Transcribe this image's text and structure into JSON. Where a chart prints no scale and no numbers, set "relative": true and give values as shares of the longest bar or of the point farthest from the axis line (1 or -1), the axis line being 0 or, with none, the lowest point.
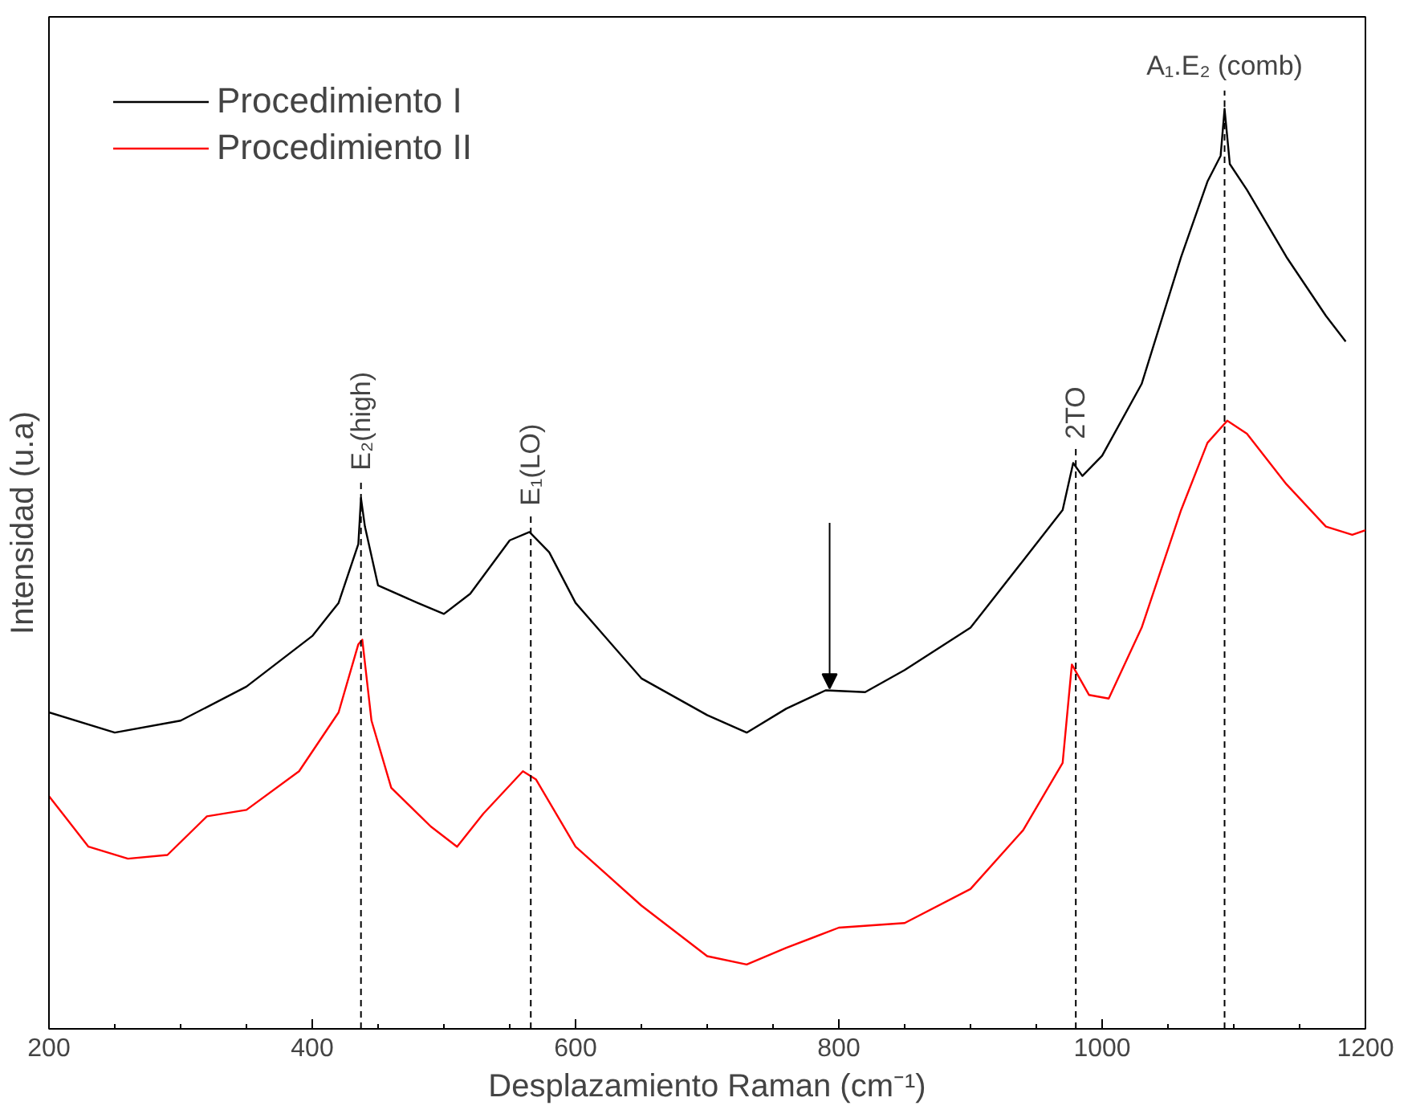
{
  "chart_data": {
    "type": "line",
    "xlabel": "Desplazamiento Raman (cm⁻¹)",
    "ylabel": "Intensidad (u.a)",
    "relative": true,
    "xlim": [
      200,
      1200
    ],
    "xticks": [
      200,
      400,
      600,
      800,
      1000,
      1200
    ],
    "tick_labels": "x",
    "grid": false,
    "legend": "top left",
    "line_style": "solid",
    "series": [
      {
        "name": "Procedimiento I",
        "color": "#000000",
        "x": [
          200,
          250,
          300,
          350,
          400,
          420,
          435,
          437,
          440,
          450,
          480,
          500,
          520,
          550,
          565,
          580,
          600,
          650,
          700,
          730,
          760,
          790,
          820,
          850,
          900,
          940,
          970,
          978,
          985,
          1000,
          1030,
          1060,
          1080,
          1090,
          1093,
          1097,
          1110,
          1140,
          1170,
          1185
        ],
        "values": [
          0.344,
          0.322,
          0.335,
          0.372,
          0.427,
          0.463,
          0.527,
          0.577,
          0.546,
          0.482,
          0.463,
          0.451,
          0.473,
          0.531,
          0.54,
          0.518,
          0.463,
          0.381,
          0.341,
          0.322,
          0.348,
          0.368,
          0.366,
          0.39,
          0.436,
          0.509,
          0.564,
          0.615,
          0.601,
          0.623,
          0.701,
          0.839,
          0.921,
          0.949,
          1,
          0.94,
          0.912,
          0.839,
          0.775,
          0.747
        ]
      },
      {
        "name": "Procedimiento II",
        "color": "#ff0000",
        "x": [
          200,
          230,
          260,
          290,
          320,
          350,
          390,
          420,
          435,
          438,
          445,
          460,
          490,
          510,
          530,
          560,
          570,
          600,
          650,
          700,
          730,
          760,
          800,
          850,
          900,
          940,
          970,
          977,
          990,
          1005,
          1030,
          1060,
          1080,
          1095,
          1110,
          1140,
          1170,
          1190,
          1200
        ],
        "values": [
          0.253,
          0.198,
          0.185,
          0.189,
          0.231,
          0.238,
          0.28,
          0.344,
          0.418,
          0.423,
          0.335,
          0.262,
          0.22,
          0.198,
          0.234,
          0.28,
          0.271,
          0.198,
          0.134,
          0.079,
          0.07,
          0.088,
          0.11,
          0.115,
          0.152,
          0.216,
          0.289,
          0.396,
          0.363,
          0.359,
          0.436,
          0.564,
          0.637,
          0.661,
          0.647,
          0.592,
          0.546,
          0.537,
          0.542
        ]
      }
    ],
    "ref_lines": [
      {
        "axis": "x",
        "value": 437,
        "label": "E₂(high)",
        "line_style": "dashed"
      },
      {
        "axis": "x",
        "value": 566,
        "label": "E₁(LO)",
        "line_style": "dashed"
      },
      {
        "axis": "x",
        "value": 980,
        "label": "2TO",
        "line_style": "dashed"
      },
      {
        "axis": "x",
        "value": 1093,
        "label": "A₁.E₂ (comb)",
        "line_style": "dashed"
      }
    ]
  }
}
